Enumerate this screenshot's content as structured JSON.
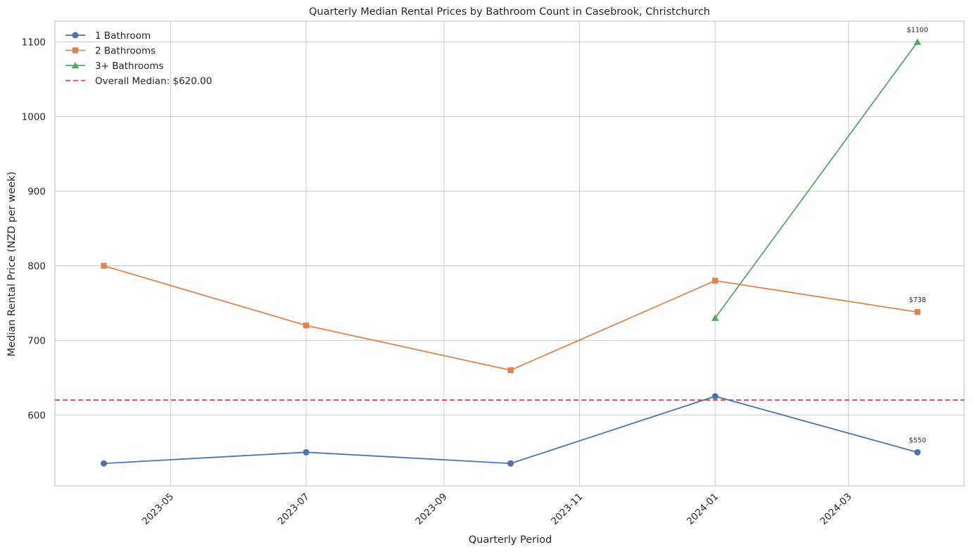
{
  "chart_data": {
    "type": "line",
    "title": "Quarterly Median Rental Prices by Bathroom Count in Casebrook, Christchurch",
    "xlabel": "Quarterly Period",
    "ylabel": "Median Rental Price (NZD per week)",
    "x": [
      "2023-04-01",
      "2023-07-01",
      "2023-10-01",
      "2024-01-01",
      "2024-04-01"
    ],
    "xlim": [
      "2023-03-10",
      "2024-04-22"
    ],
    "ylim": [
      505,
      1128
    ],
    "yticks": [
      600,
      700,
      800,
      900,
      1000,
      1100
    ],
    "xticks": [
      "2023-05-01",
      "2023-07-01",
      "2023-09-01",
      "2023-11-01",
      "2024-01-01",
      "2024-03-01"
    ],
    "xtick_labels": [
      "2023-05",
      "2023-07",
      "2023-09",
      "2023-11",
      "2024-01",
      "2024-03"
    ],
    "grid": true,
    "legend_position": "upper-left",
    "series": [
      {
        "name": "1 Bathroom",
        "color": "#4c72b0",
        "marker": "circle",
        "x": [
          "2023-04-01",
          "2023-07-01",
          "2023-10-01",
          "2024-01-01",
          "2024-04-01"
        ],
        "values": [
          535,
          550,
          535,
          625,
          550
        ]
      },
      {
        "name": "2 Bathrooms",
        "color": "#dd8452",
        "marker": "square",
        "x": [
          "2023-04-01",
          "2023-07-01",
          "2023-10-01",
          "2024-01-01",
          "2024-04-01"
        ],
        "values": [
          800,
          720,
          660,
          780,
          738
        ]
      },
      {
        "name": "3+ Bathrooms",
        "color": "#55a868",
        "marker": "triangle",
        "x": [
          "2024-01-01",
          "2024-04-01"
        ],
        "values": [
          730,
          1100
        ]
      }
    ],
    "reference_line": {
      "name": "Overall Median: $620.00",
      "value": 620,
      "color": "#c44e52",
      "style": "dashed"
    },
    "annotations": [
      {
        "text": "$1100",
        "x": "2024-04-01",
        "y": 1100
      },
      {
        "text": "$738",
        "x": "2024-04-01",
        "y": 738
      },
      {
        "text": "$550",
        "x": "2024-04-01",
        "y": 550
      }
    ]
  }
}
